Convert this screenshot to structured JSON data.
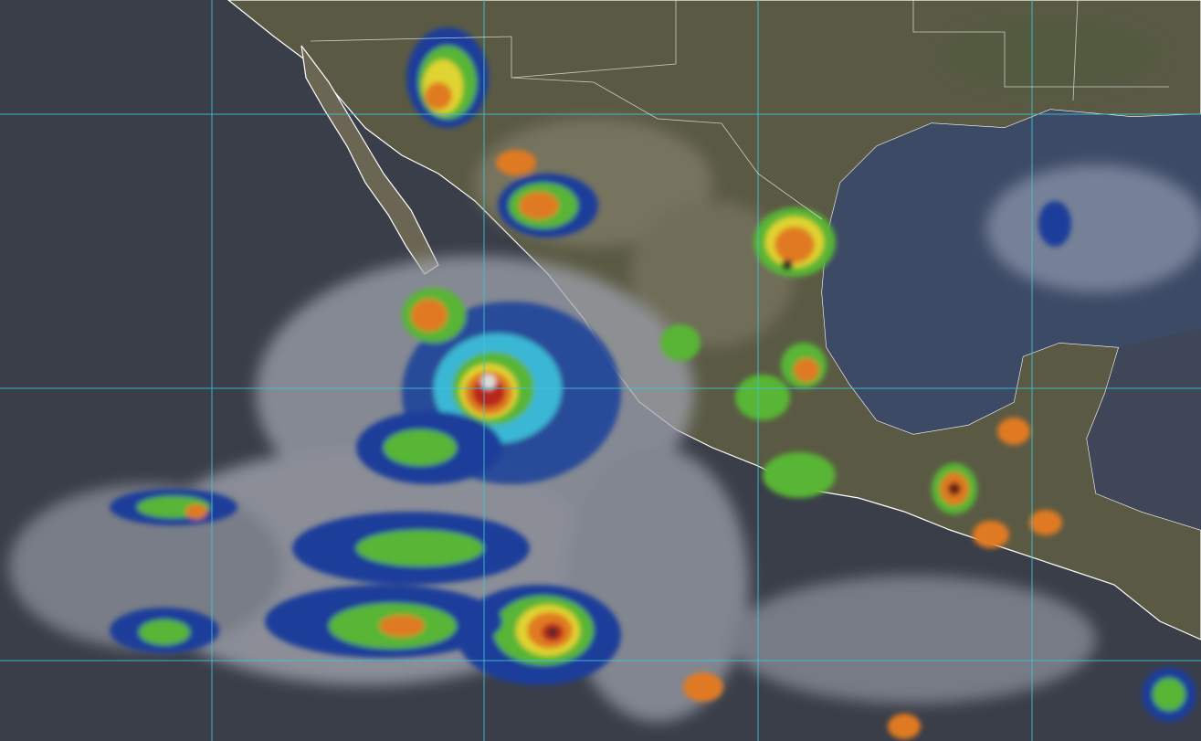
{
  "map": {
    "kind": "satellite-infrared-composite",
    "colors": {
      "ocean": "#3a3e48",
      "gulf": "#3d4a66",
      "land": "#5a5a44",
      "land_dry": "#7a7462",
      "coastline": "#ffffff",
      "gridline": "#3fc6d8",
      "cloud_low": "#b9bcc4",
      "cloud_blue": "#1b3e9a",
      "cloud_cyan": "#3bb7d6",
      "cloud_green": "#58b535",
      "cloud_yellow": "#e0d431",
      "cloud_orange": "#e07a22",
      "cloud_red": "#b7281b",
      "eye": "#2a2a2a"
    },
    "features": [
      "hurricane-eye",
      "tropical-storm",
      "thunderstorm-cells"
    ]
  }
}
